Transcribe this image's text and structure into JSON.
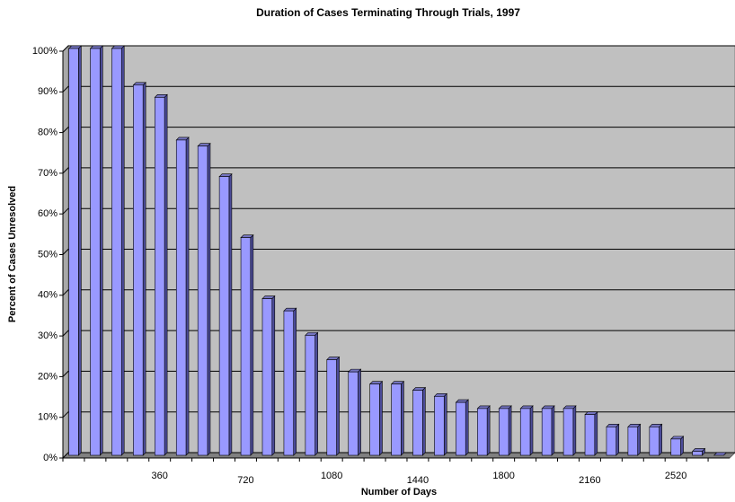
{
  "chart_data": {
    "type": "bar",
    "title": "Duration of Cases Terminating Through Trials, 1997",
    "x_label": "Number of Days",
    "y_label": "Percent of Cases Unresolved",
    "categories": [
      null,
      null,
      null,
      null,
      "360",
      null,
      null,
      null,
      "720",
      null,
      null,
      null,
      "1080",
      null,
      null,
      null,
      "1440",
      null,
      null,
      null,
      "1800",
      null,
      null,
      null,
      "2160",
      null,
      null,
      null,
      "2520",
      null,
      null
    ],
    "values": [
      100,
      100,
      100,
      91,
      88,
      77.5,
      76,
      68.5,
      53.5,
      38.5,
      35.5,
      29.5,
      23.5,
      20.5,
      17.5,
      17.5,
      16,
      14.5,
      13,
      11.5,
      11.5,
      11.5,
      11.5,
      11.5,
      10,
      7,
      7,
      7,
      4,
      1,
      0
    ],
    "color": "#9999ff",
    "ylim": [
      0,
      100
    ],
    "yticks": [
      {
        "value": 0,
        "label": "0%"
      },
      {
        "value": 10,
        "label": "10%"
      },
      {
        "value": 20,
        "label": "20%"
      },
      {
        "value": 30,
        "label": "30%"
      },
      {
        "value": 40,
        "label": "40%"
      },
      {
        "value": 50,
        "label": "50%"
      },
      {
        "value": 60,
        "label": "60%"
      },
      {
        "value": 70,
        "label": "70%"
      },
      {
        "value": 80,
        "label": "80%"
      },
      {
        "value": 90,
        "label": "90%"
      },
      {
        "value": 100,
        "label": "100%"
      }
    ],
    "grid": true
  }
}
